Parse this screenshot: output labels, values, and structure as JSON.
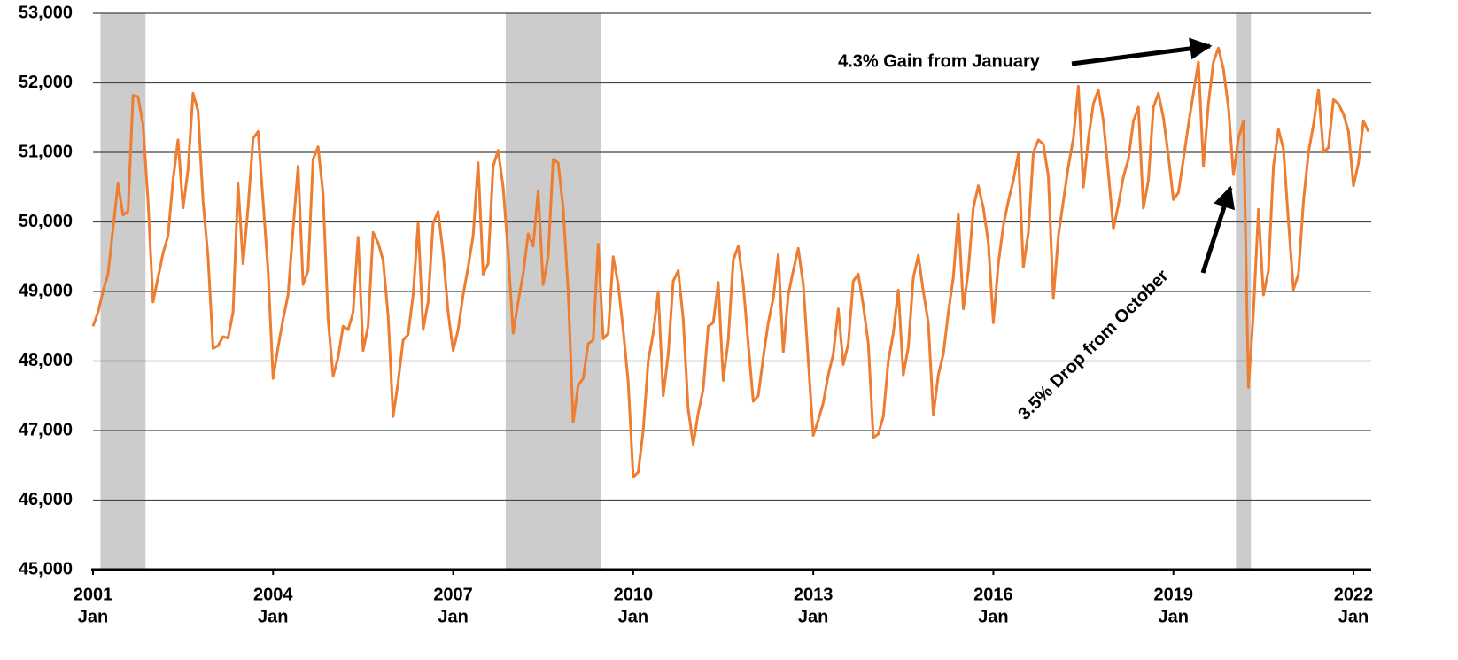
{
  "chart_data": {
    "type": "line",
    "x": [
      "2001-01",
      "2001-02",
      "2001-03",
      "2001-04",
      "2001-05",
      "2001-06",
      "2001-07",
      "2001-08",
      "2001-09",
      "2001-10",
      "2001-11",
      "2001-12",
      "2002-01",
      "2002-02",
      "2002-03",
      "2002-04",
      "2002-05",
      "2002-06",
      "2002-07",
      "2002-08",
      "2002-09",
      "2002-10",
      "2002-11",
      "2002-12",
      "2003-01",
      "2003-02",
      "2003-03",
      "2003-04",
      "2003-05",
      "2003-06",
      "2003-07",
      "2003-08",
      "2003-09",
      "2003-10",
      "2003-11",
      "2003-12",
      "2004-01",
      "2004-02",
      "2004-03",
      "2004-04",
      "2004-05",
      "2004-06",
      "2004-07",
      "2004-08",
      "2004-09",
      "2004-10",
      "2004-11",
      "2004-12",
      "2005-01",
      "2005-02",
      "2005-03",
      "2005-04",
      "2005-05",
      "2005-06",
      "2005-07",
      "2005-08",
      "2005-09",
      "2005-10",
      "2005-11",
      "2005-12",
      "2006-01",
      "2006-02",
      "2006-03",
      "2006-04",
      "2006-05",
      "2006-06",
      "2006-07",
      "2006-08",
      "2006-09",
      "2006-10",
      "2006-11",
      "2006-12",
      "2007-01",
      "2007-02",
      "2007-03",
      "2007-04",
      "2007-05",
      "2007-06",
      "2007-07",
      "2007-08",
      "2007-09",
      "2007-10",
      "2007-11",
      "2007-12",
      "2008-01",
      "2008-02",
      "2008-03",
      "2008-04",
      "2008-05",
      "2008-06",
      "2008-07",
      "2008-08",
      "2008-09",
      "2008-10",
      "2008-11",
      "2008-12",
      "2009-01",
      "2009-02",
      "2009-03",
      "2009-04",
      "2009-05",
      "2009-06",
      "2009-07",
      "2009-08",
      "2009-09",
      "2009-10",
      "2009-11",
      "2009-12",
      "2010-01",
      "2010-02",
      "2010-03",
      "2010-04",
      "2010-05",
      "2010-06",
      "2010-07",
      "2010-08",
      "2010-09",
      "2010-10",
      "2010-11",
      "2010-12",
      "2011-01",
      "2011-02",
      "2011-03",
      "2011-04",
      "2011-05",
      "2011-06",
      "2011-07",
      "2011-08",
      "2011-09",
      "2011-10",
      "2011-11",
      "2011-12",
      "2012-01",
      "2012-02",
      "2012-03",
      "2012-04",
      "2012-05",
      "2012-06",
      "2012-07",
      "2012-08",
      "2012-09",
      "2012-10",
      "2012-11",
      "2012-12",
      "2013-01",
      "2013-02",
      "2013-03",
      "2013-04",
      "2013-05",
      "2013-06",
      "2013-07",
      "2013-08",
      "2013-09",
      "2013-10",
      "2013-11",
      "2013-12",
      "2014-01",
      "2014-02",
      "2014-03",
      "2014-04",
      "2014-05",
      "2014-06",
      "2014-07",
      "2014-08",
      "2014-09",
      "2014-10",
      "2014-11",
      "2014-12",
      "2015-01",
      "2015-02",
      "2015-03",
      "2015-04",
      "2015-05",
      "2015-06",
      "2015-07",
      "2015-08",
      "2015-09",
      "2015-10",
      "2015-11",
      "2015-12",
      "2016-01",
      "2016-02",
      "2016-03",
      "2016-04",
      "2016-05",
      "2016-06",
      "2016-07",
      "2016-08",
      "2016-09",
      "2016-10",
      "2016-11",
      "2016-12",
      "2017-01",
      "2017-02",
      "2017-03",
      "2017-04",
      "2017-05",
      "2017-06",
      "2017-07",
      "2017-08",
      "2017-09",
      "2017-10",
      "2017-11",
      "2017-12",
      "2018-01",
      "2018-02",
      "2018-03",
      "2018-04",
      "2018-05",
      "2018-06",
      "2018-07",
      "2018-08",
      "2018-09",
      "2018-10",
      "2018-11",
      "2018-12",
      "2019-01",
      "2019-02",
      "2019-03",
      "2019-04",
      "2019-05",
      "2019-06",
      "2019-07",
      "2019-08",
      "2019-09",
      "2019-10",
      "2019-11",
      "2019-12",
      "2020-01",
      "2020-02",
      "2020-03",
      "2020-04",
      "2020-05",
      "2020-06",
      "2020-07",
      "2020-08",
      "2020-09",
      "2020-10",
      "2020-11",
      "2020-12",
      "2021-01",
      "2021-02",
      "2021-03",
      "2021-04",
      "2021-05",
      "2021-06",
      "2021-07",
      "2021-08",
      "2021-09",
      "2021-10",
      "2021-11",
      "2021-12",
      "2022-01",
      "2022-02",
      "2022-03",
      "2022-04"
    ],
    "series": [
      {
        "color": "#ed7d31",
        "values": [
          48500,
          48700,
          49000,
          49250,
          49900,
          50550,
          50100,
          50150,
          51820,
          51800,
          51400,
          50300,
          48850,
          49200,
          49550,
          49800,
          50600,
          51180,
          50200,
          50750,
          51850,
          51600,
          50300,
          49500,
          48180,
          48220,
          48350,
          48330,
          48700,
          50550,
          49400,
          50200,
          51200,
          51300,
          50300,
          49300,
          47750,
          48200,
          48600,
          48950,
          49900,
          50800,
          49100,
          49300,
          50900,
          51080,
          50400,
          48600,
          47780,
          48050,
          48500,
          48450,
          48700,
          49780,
          48150,
          48500,
          49850,
          49700,
          49450,
          48650,
          47200,
          47700,
          48300,
          48380,
          48950,
          49980,
          48450,
          48850,
          49980,
          50150,
          49550,
          48700,
          48150,
          48450,
          48950,
          49350,
          49800,
          50850,
          49250,
          49400,
          50800,
          51030,
          50500,
          49550,
          48400,
          48850,
          49250,
          49830,
          49650,
          50450,
          49100,
          49500,
          50900,
          50850,
          50200,
          49000,
          47120,
          47650,
          47750,
          48250,
          48300,
          49680,
          48320,
          48400,
          49500,
          49100,
          48450,
          47700,
          46330,
          46400,
          47000,
          48000,
          48400,
          49000,
          47500,
          48100,
          49150,
          49300,
          48600,
          47300,
          46800,
          47250,
          47600,
          48500,
          48550,
          49130,
          47720,
          48300,
          49450,
          49650,
          49100,
          48250,
          47420,
          47500,
          48050,
          48550,
          48900,
          49530,
          48130,
          48950,
          49300,
          49620,
          49100,
          48000,
          46930,
          47150,
          47400,
          47800,
          48100,
          48750,
          47950,
          48250,
          49150,
          49250,
          48800,
          48250,
          46900,
          46950,
          47200,
          48000,
          48400,
          49020,
          47800,
          48200,
          49200,
          49520,
          49000,
          48550,
          47220,
          47800,
          48100,
          48700,
          49200,
          50120,
          48750,
          49300,
          50200,
          50520,
          50200,
          49700,
          48550,
          49400,
          49950,
          50300,
          50600,
          50980,
          49350,
          49850,
          51000,
          51180,
          51120,
          50650,
          48900,
          49800,
          50300,
          50800,
          51200,
          51950,
          50500,
          51200,
          51700,
          51900,
          51450,
          50700,
          49900,
          50250,
          50650,
          50900,
          51450,
          51650,
          50200,
          50600,
          51650,
          51850,
          51500,
          50950,
          50320,
          50420,
          50900,
          51400,
          51850,
          52300,
          50800,
          51700,
          52300,
          52500,
          52200,
          51650,
          50680,
          51200,
          51450,
          47620,
          48700,
          50180,
          48950,
          49300,
          50800,
          51330,
          51050,
          50000,
          49030,
          49250,
          50300,
          51000,
          51400,
          51900,
          51000,
          51070,
          51760,
          51700,
          51550,
          51300,
          50520,
          50850,
          51450,
          51300
        ]
      }
    ],
    "ylim": [
      45000,
      53000
    ],
    "yticks": [
      {
        "value": 45000,
        "label": "45,000"
      },
      {
        "value": 46000,
        "label": "46,000"
      },
      {
        "value": 47000,
        "label": "47,000"
      },
      {
        "value": 48000,
        "label": "48,000"
      },
      {
        "value": 49000,
        "label": "49,000"
      },
      {
        "value": 50000,
        "label": "50,000"
      },
      {
        "value": 51000,
        "label": "51,000"
      },
      {
        "value": 52000,
        "label": "52,000"
      },
      {
        "value": 53000,
        "label": "53,000"
      }
    ],
    "xticks": [
      {
        "value": "2001-01",
        "label": [
          "2001",
          "Jan"
        ]
      },
      {
        "value": "2004-01",
        "label": [
          "2004",
          "Jan"
        ]
      },
      {
        "value": "2007-01",
        "label": [
          "2007",
          "Jan"
        ]
      },
      {
        "value": "2010-01",
        "label": [
          "2010",
          "Jan"
        ]
      },
      {
        "value": "2013-01",
        "label": [
          "2013",
          "Jan"
        ]
      },
      {
        "value": "2016-01",
        "label": [
          "2016",
          "Jan"
        ]
      },
      {
        "value": "2019-01",
        "label": [
          "2019",
          "Jan"
        ]
      },
      {
        "value": "2022-01",
        "label": [
          "2022",
          "Jan"
        ]
      }
    ],
    "shaded": [
      {
        "start": "2001-03",
        "end": "2001-11",
        "color": "#cccccc"
      },
      {
        "start": "2007-12",
        "end": "2009-06",
        "color": "#cccccc"
      },
      {
        "start": "2020-02",
        "end": "2020-04",
        "color": "#cccccc"
      }
    ],
    "grid": true,
    "annotations": [
      "4.3% Gain from January",
      "3.5% Drop from October"
    ]
  }
}
